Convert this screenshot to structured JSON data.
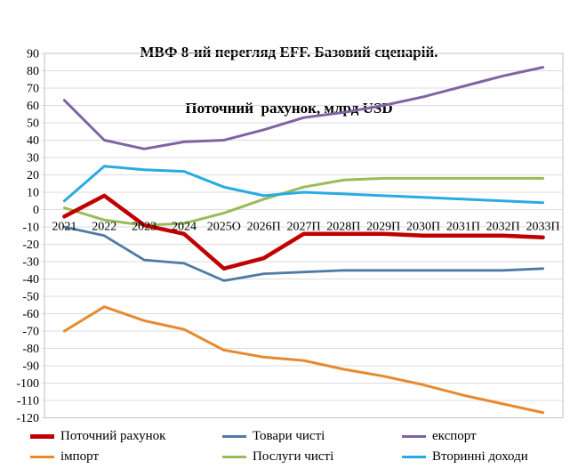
{
  "title": {
    "line1": "МВФ 8-ий перегляд EFF. Базовий сценарій.",
    "line2": "Поточний  рахунок, млрд USD"
  },
  "chart_data": {
    "type": "line",
    "categories": [
      "2021",
      "2022",
      "2023",
      "2024",
      "2025О",
      "2026П",
      "2027П",
      "2028П",
      "2029П",
      "2030П",
      "2031П",
      "2032П",
      "2033П"
    ],
    "ylim": [
      -120,
      90
    ],
    "ytick_step": 10,
    "yticks": [
      90,
      80,
      70,
      60,
      50,
      40,
      30,
      20,
      10,
      0,
      -10,
      -20,
      -30,
      -40,
      -50,
      -60,
      -70,
      -80,
      -90,
      -100,
      -110,
      -120
    ],
    "grid": true,
    "legend_position": "bottom",
    "colors": {
      "grid": "#DCDCDC",
      "border": "#C2C2C2",
      "text": "#000000"
    },
    "series": [
      {
        "name": "Поточний рахунок",
        "color": "#C00000",
        "width": 4.5,
        "values": [
          -4,
          8,
          -9,
          -14,
          -34,
          -28,
          -14,
          -14,
          -14,
          -15,
          -15,
          -15,
          -16
        ]
      },
      {
        "name": "Товари чисті",
        "color": "#4F7AA5",
        "width": 2.8,
        "values": [
          -10,
          -15,
          -29,
          -31,
          -41,
          -37,
          -36,
          -35,
          -35,
          -35,
          -35,
          -35,
          -34
        ]
      },
      {
        "name": "експорт",
        "color": "#8064A2",
        "width": 3,
        "values": [
          63,
          40,
          35,
          39,
          40,
          46,
          53,
          56,
          60,
          65,
          71,
          77,
          82
        ]
      },
      {
        "name": "імпорт",
        "color": "#E78A2E",
        "width": 3,
        "values": [
          -70,
          -56,
          -64,
          -69,
          -81,
          -85,
          -87,
          -92,
          -96,
          -101,
          -107,
          -112,
          -117
        ]
      },
      {
        "name": "Послуги чисті",
        "color": "#9BBB59",
        "width": 3,
        "values": [
          1,
          -6,
          -9,
          -8,
          -2,
          6,
          13,
          17,
          18,
          18,
          18,
          18,
          18
        ]
      },
      {
        "name": "Вторинні доходи",
        "color": "#29ABE2",
        "width": 3,
        "values": [
          5,
          25,
          23,
          22,
          13,
          8,
          10,
          9,
          8,
          7,
          6,
          5,
          4
        ]
      }
    ]
  }
}
